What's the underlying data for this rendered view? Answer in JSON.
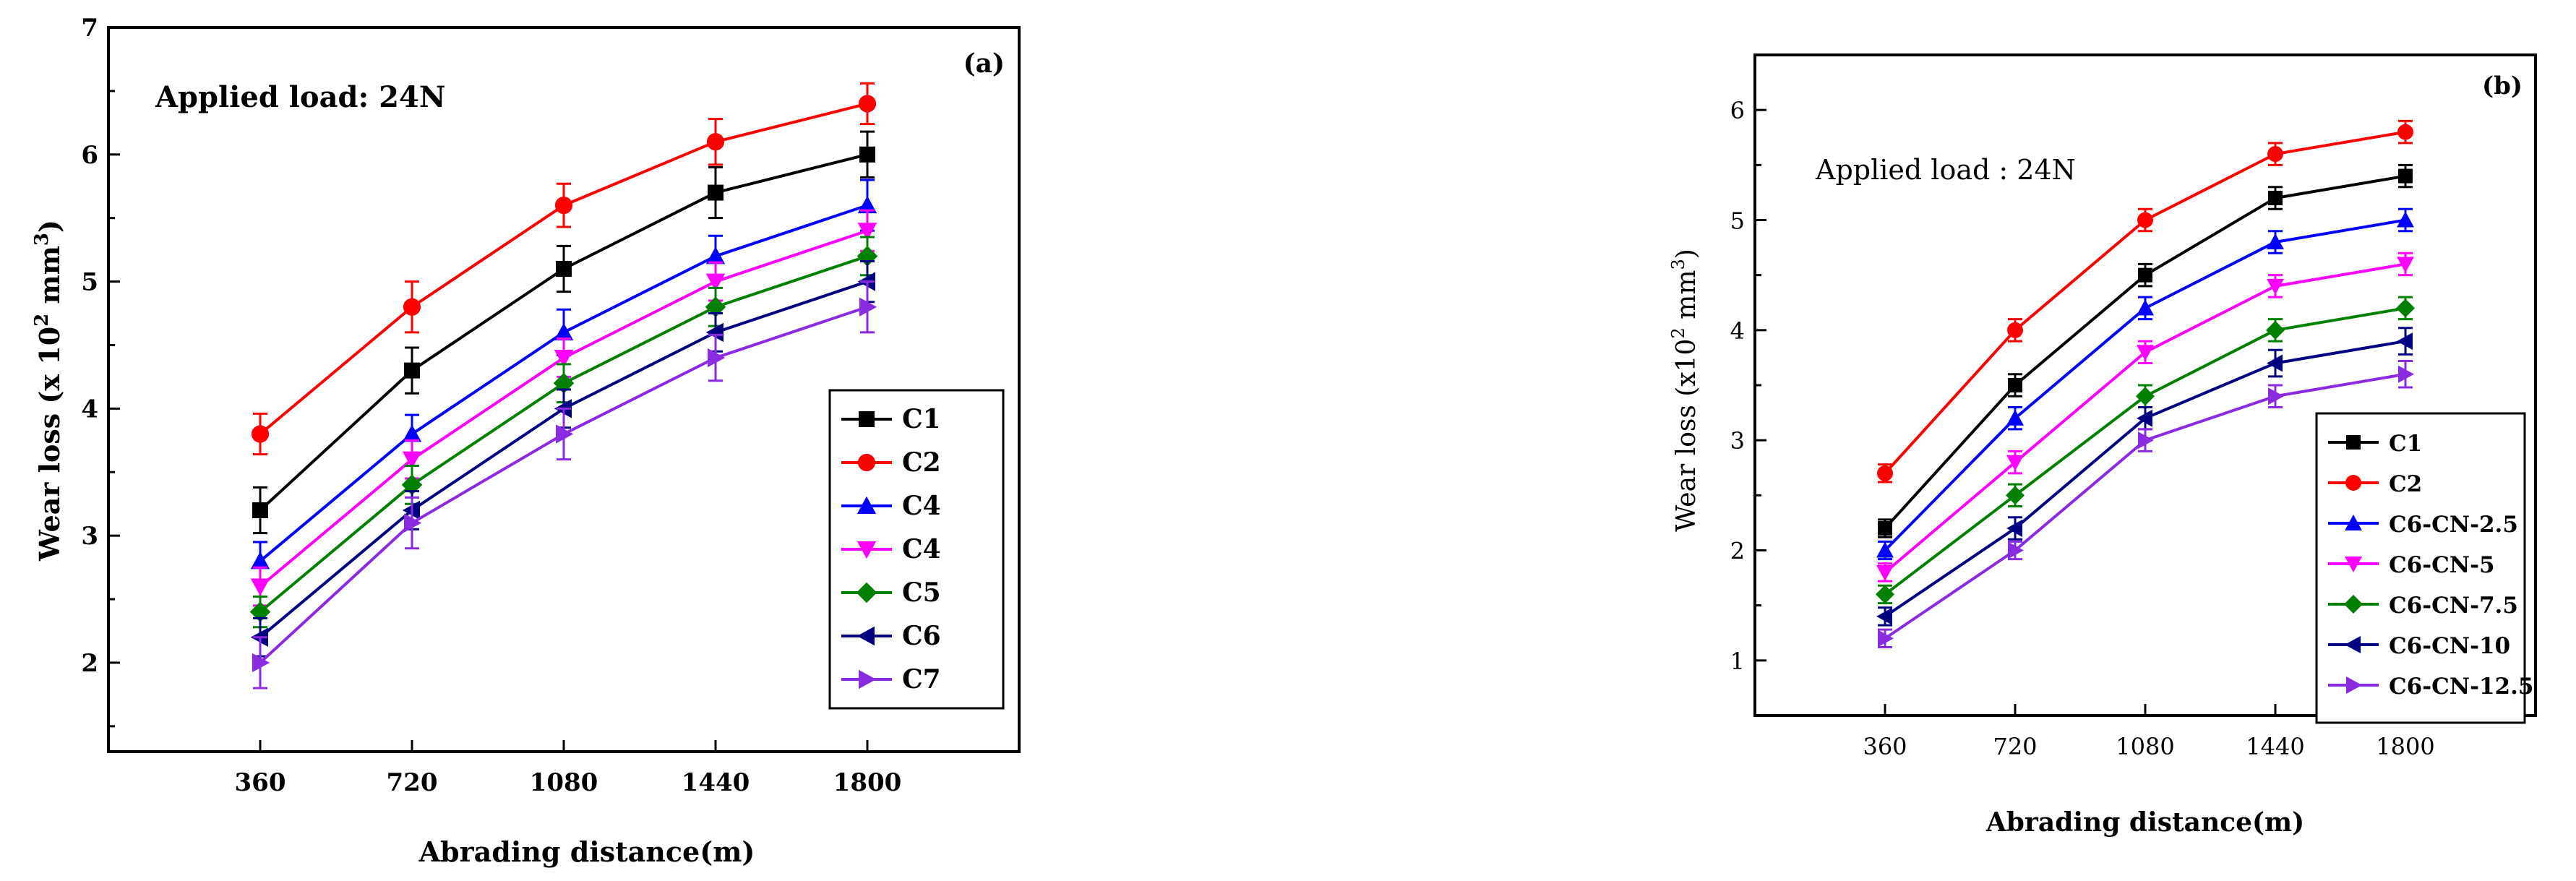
{
  "chart_data": [
    {
      "type": "line",
      "panel_label": "(a)",
      "annotation": "Applied load: 24N",
      "xlabel": "Abrading distance(m)",
      "ylabel": {
        "base": "Wear loss (x 10",
        "sup1": "2",
        "mid": " mm",
        "sup2": "3",
        "end": ")"
      },
      "categories": [
        "360",
        "720",
        "1080",
        "1440",
        "1800"
      ],
      "x": [
        360,
        720,
        1080,
        1440,
        1800
      ],
      "xlim": [
        0,
        2160
      ],
      "ylim": [
        1.3,
        7
      ],
      "yticks": [
        2,
        3,
        4,
        5,
        6,
        7
      ],
      "legend_position": "lower-right",
      "series": [
        {
          "name": "C1",
          "color": "#000000",
          "marker": "square",
          "values": [
            3.2,
            4.3,
            5.1,
            5.7,
            6.0
          ],
          "errors": [
            0.18,
            0.18,
            0.18,
            0.2,
            0.18
          ]
        },
        {
          "name": "C2",
          "color": "#ff0000",
          "marker": "circle",
          "values": [
            3.8,
            4.8,
            5.6,
            6.1,
            6.4
          ],
          "errors": [
            0.16,
            0.2,
            0.17,
            0.18,
            0.16
          ]
        },
        {
          "name": "C4",
          "color": "#0000ff",
          "marker": "triangle-up",
          "values": [
            2.8,
            3.8,
            4.6,
            5.2,
            5.6
          ],
          "errors": [
            0.15,
            0.15,
            0.18,
            0.16,
            0.2
          ]
        },
        {
          "name": "C4",
          "color": "#ff00ff",
          "marker": "triangle-down",
          "values": [
            2.6,
            3.6,
            4.4,
            5.0,
            5.4
          ],
          "errors": [
            0.15,
            0.15,
            0.15,
            0.15,
            0.16
          ]
        },
        {
          "name": "C5",
          "color": "#008000",
          "marker": "diamond",
          "values": [
            2.4,
            3.4,
            4.2,
            4.8,
            5.2
          ],
          "errors": [
            0.12,
            0.15,
            0.15,
            0.15,
            0.15
          ]
        },
        {
          "name": "C6",
          "color": "#000080",
          "marker": "triangle-left",
          "values": [
            2.2,
            3.2,
            4.0,
            4.6,
            5.0
          ],
          "errors": [
            0.15,
            0.15,
            0.15,
            0.15,
            0.16
          ]
        },
        {
          "name": "C7",
          "color": "#8a2be2",
          "marker": "triangle-right",
          "values": [
            2.0,
            3.1,
            3.8,
            4.4,
            4.8
          ],
          "errors": [
            0.2,
            0.2,
            0.2,
            0.18,
            0.2
          ]
        }
      ]
    },
    {
      "type": "line",
      "panel_label": "(b)",
      "annotation": "Applied load : 24N",
      "xlabel": "Abrading distance(m)",
      "ylabel": {
        "base": "Wear loss (x10",
        "sup1": "2",
        "mid": " mm",
        "sup2": "3",
        "end": ")"
      },
      "categories": [
        "360",
        "720",
        "1080",
        "1440",
        "1800"
      ],
      "x": [
        360,
        720,
        1080,
        1440,
        1800
      ],
      "xlim": [
        0,
        2160
      ],
      "ylim": [
        0.5,
        6.5
      ],
      "yticks": [
        1,
        2,
        3,
        4,
        5,
        6
      ],
      "legend_position": "lower-right",
      "series": [
        {
          "name": "C1",
          "color": "#000000",
          "marker": "square",
          "values": [
            2.2,
            3.5,
            4.5,
            5.2,
            5.4
          ],
          "errors": [
            0.08,
            0.1,
            0.1,
            0.1,
            0.1
          ]
        },
        {
          "name": "C2",
          "color": "#ff0000",
          "marker": "circle",
          "values": [
            2.7,
            4.0,
            5.0,
            5.6,
            5.8
          ],
          "errors": [
            0.08,
            0.1,
            0.1,
            0.1,
            0.1
          ]
        },
        {
          "name": "C6-CN-2.5",
          "color": "#0000ff",
          "marker": "triangle-up",
          "values": [
            2.0,
            3.2,
            4.2,
            4.8,
            5.0
          ],
          "errors": [
            0.08,
            0.1,
            0.1,
            0.1,
            0.1
          ]
        },
        {
          "name": "C6-CN-5",
          "color": "#ff00ff",
          "marker": "triangle-down",
          "values": [
            1.8,
            2.8,
            3.8,
            4.4,
            4.6
          ],
          "errors": [
            0.08,
            0.1,
            0.1,
            0.1,
            0.1
          ]
        },
        {
          "name": "C6-CN-7.5",
          "color": "#008000",
          "marker": "diamond",
          "values": [
            1.6,
            2.5,
            3.4,
            4.0,
            4.2
          ],
          "errors": [
            0.08,
            0.1,
            0.1,
            0.1,
            0.1
          ]
        },
        {
          "name": "C6-CN-10",
          "color": "#000080",
          "marker": "triangle-left",
          "values": [
            1.4,
            2.2,
            3.2,
            3.7,
            3.9
          ],
          "errors": [
            0.08,
            0.1,
            0.1,
            0.12,
            0.12
          ]
        },
        {
          "name": "C6-CN-12.5",
          "color": "#8a2be2",
          "marker": "triangle-right",
          "values": [
            1.2,
            2.0,
            3.0,
            3.4,
            3.6
          ],
          "errors": [
            0.08,
            0.08,
            0.1,
            0.1,
            0.12
          ]
        }
      ]
    }
  ]
}
